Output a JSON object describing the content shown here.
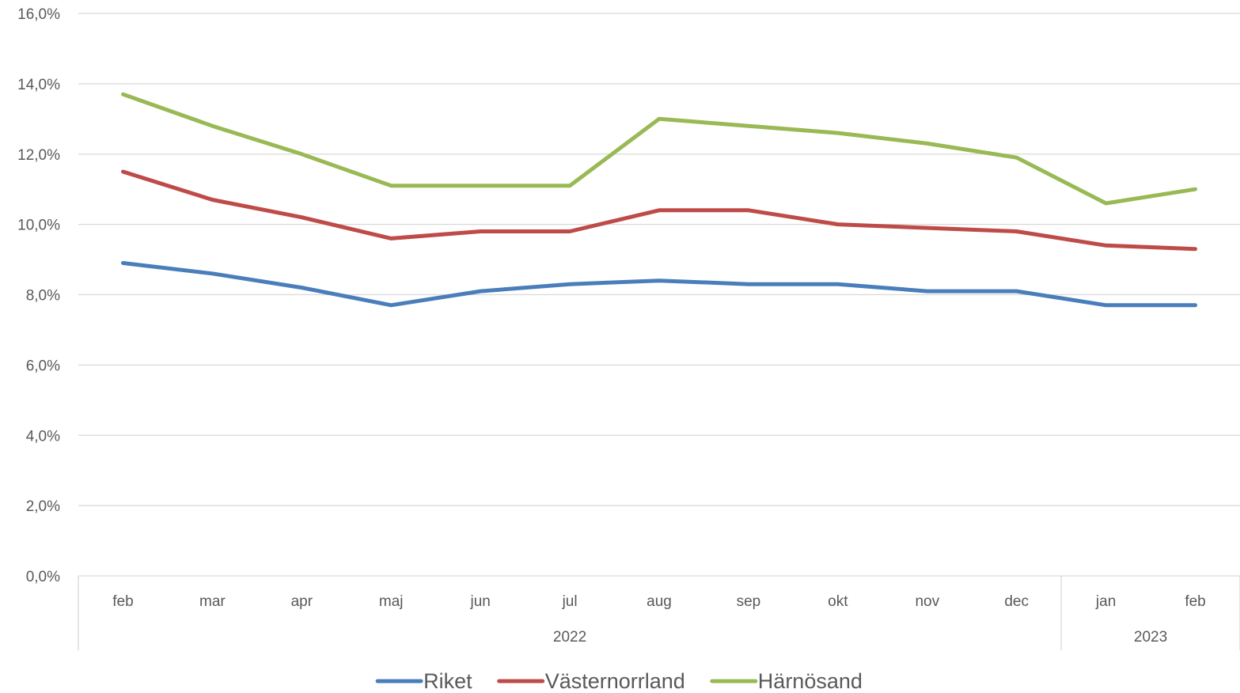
{
  "chart_data": {
    "type": "line",
    "title": "",
    "xlabel": "",
    "ylabel": "",
    "categories": [
      "feb",
      "mar",
      "apr",
      "maj",
      "jun",
      "jul",
      "aug",
      "sep",
      "okt",
      "nov",
      "dec",
      "jan",
      "feb"
    ],
    "groups": [
      {
        "label": "2022",
        "start": 0,
        "end": 10
      },
      {
        "label": "2023",
        "start": 11,
        "end": 12
      }
    ],
    "y_ticks": [
      "0,0%",
      "2,0%",
      "4,0%",
      "6,0%",
      "8,0%",
      "10,0%",
      "12,0%",
      "14,0%",
      "16,0%"
    ],
    "ylim": [
      0,
      16
    ],
    "y_unit": "%",
    "grid": true,
    "legend_position": "bottom",
    "series": [
      {
        "name": "Riket",
        "color": "#4a7ebb",
        "values": [
          8.9,
          8.6,
          8.2,
          7.7,
          8.1,
          8.3,
          8.4,
          8.3,
          8.3,
          8.1,
          8.1,
          7.7,
          7.7
        ]
      },
      {
        "name": "Västernorrland",
        "color": "#be4b48",
        "values": [
          11.5,
          10.7,
          10.2,
          9.6,
          9.8,
          9.8,
          10.4,
          10.4,
          10.0,
          9.9,
          9.8,
          9.4,
          9.3
        ]
      },
      {
        "name": "Härnösand",
        "color": "#98b954",
        "values": [
          13.7,
          12.8,
          12.0,
          11.1,
          11.1,
          11.1,
          13.0,
          12.8,
          12.6,
          12.3,
          11.9,
          10.6,
          11.0
        ]
      }
    ]
  }
}
